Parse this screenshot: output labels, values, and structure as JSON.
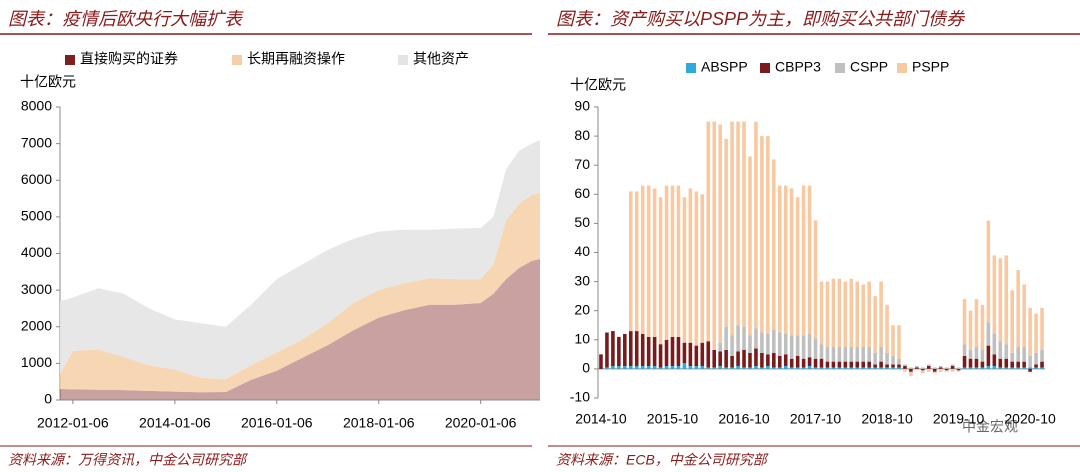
{
  "chart_data": [
    {
      "type": "area",
      "title": "图表：疫情后欧央行大幅扩表",
      "ylabel": "十亿欧元",
      "source": "资料来源：万得资讯，中金公司研究部",
      "x": [
        "2011-10-06",
        "2012-01-06",
        "2012-07-06",
        "2013-01-06",
        "2013-07-06",
        "2014-01-06",
        "2014-07-06",
        "2015-01-06",
        "2015-07-06",
        "2016-01-06",
        "2016-07-06",
        "2017-01-06",
        "2017-07-06",
        "2018-01-06",
        "2018-07-06",
        "2019-01-06",
        "2019-07-06",
        "2020-01-06",
        "2020-04-06",
        "2020-07-06",
        "2020-10-06",
        "2021-01-06",
        "2021-03-06"
      ],
      "series": [
        {
          "name": "直接购买的证券",
          "color": "#7f1f1f",
          "values": [
            300,
            290,
            280,
            270,
            250,
            230,
            210,
            220,
            550,
            800,
            1150,
            1500,
            1900,
            2250,
            2450,
            2600,
            2600,
            2650,
            2900,
            3300,
            3600,
            3800,
            3850
          ]
        },
        {
          "name": "长期再融资操作",
          "color": "#f6cfa6",
          "values": [
            400,
            1050,
            1100,
            900,
            700,
            600,
            400,
            350,
            400,
            500,
            500,
            600,
            750,
            750,
            740,
            720,
            700,
            650,
            800,
            1600,
            1750,
            1800,
            1800
          ]
        },
        {
          "name": "其他资产",
          "color": "#e4e4e4",
          "values": [
            2000,
            1460,
            1670,
            1730,
            1550,
            1370,
            1490,
            1430,
            1650,
            2000,
            2050,
            2000,
            1750,
            1600,
            1460,
            1330,
            1380,
            1400,
            1300,
            1400,
            1450,
            1400,
            1450
          ]
        }
      ],
      "xlim": [
        "2011-10-06",
        "2021-03-06"
      ],
      "xticks": [
        "2012-01-06",
        "2014-01-06",
        "2016-01-06",
        "2018-01-06",
        "2020-01-06"
      ],
      "ylim": [
        0,
        8000
      ],
      "yticks": [
        0,
        1000,
        2000,
        3000,
        4000,
        5000,
        6000,
        7000,
        8000
      ]
    },
    {
      "type": "bar",
      "title": "图表：资产购买以PSPP为主，即购买公共部门债券",
      "ylabel": "十亿欧元",
      "source": "资料来源：ECB，中金公司研究部",
      "watermark": "中金宏观",
      "categories": [
        "2014-10",
        null,
        null,
        null,
        null,
        null,
        null,
        null,
        null,
        null,
        null,
        null,
        "2015-10",
        null,
        null,
        null,
        null,
        null,
        null,
        null,
        null,
        null,
        null,
        null,
        "2016-10",
        null,
        null,
        null,
        null,
        null,
        null,
        null,
        null,
        null,
        null,
        null,
        "2017-10",
        null,
        null,
        null,
        null,
        null,
        null,
        null,
        null,
        null,
        null,
        null,
        "2018-10",
        null,
        null,
        null,
        null,
        null,
        null,
        null,
        null,
        null,
        null,
        null,
        "2019-10",
        null,
        null,
        null,
        null,
        null,
        null,
        null,
        null,
        null,
        null,
        null,
        "2020-10",
        null,
        null
      ],
      "series": [
        {
          "name": "ABSPP",
          "color": "#2eaadc",
          "values": [
            0,
            0.5,
            1,
            1,
            1,
            1,
            1,
            1,
            1,
            1,
            0.5,
            1,
            1,
            1,
            2,
            1,
            1,
            1,
            0.5,
            0.5,
            1,
            0.5,
            0.5,
            1,
            0.5,
            0.5,
            1,
            0.5,
            1,
            0.5,
            0.5,
            1,
            0.5,
            0.5,
            0.5,
            1,
            0.5,
            0.5,
            0.5,
            0.5,
            0.5,
            0.5,
            0.5,
            0.5,
            0.5,
            0.5,
            0.5,
            0.5,
            0.5,
            0.5,
            0.5,
            0,
            0,
            0,
            0,
            0,
            0,
            0,
            0,
            0,
            0,
            0.5,
            0.5,
            0.5,
            0.5,
            1,
            1,
            0.5,
            0.5,
            0.5,
            0.5,
            0.5,
            0.5,
            0.5,
            0.5
          ]
        },
        {
          "name": "CBPP3",
          "color": "#7b1a1a",
          "values": [
            5,
            12,
            12,
            10,
            11,
            12,
            12,
            11,
            10,
            10,
            8,
            9,
            10,
            10,
            7,
            8,
            7,
            8,
            9,
            6,
            5,
            6,
            4,
            5,
            6,
            5,
            6,
            5,
            4,
            5,
            4,
            4,
            3,
            4,
            3,
            3,
            3,
            3,
            2,
            2,
            2,
            2,
            2,
            2,
            2,
            2,
            1,
            2,
            1,
            1,
            1,
            1,
            -1,
            0.5,
            -0.5,
            1,
            -1,
            0.5,
            -0.5,
            1,
            -0.5,
            4,
            3,
            3,
            2,
            7,
            4,
            3,
            3,
            2,
            2,
            2,
            -1,
            1,
            2
          ]
        },
        {
          "name": "CSPP",
          "color": "#bfbfbf",
          "values": [
            0,
            0,
            0,
            0,
            0,
            0,
            0,
            0,
            0,
            0,
            0,
            0,
            0,
            0,
            0,
            0,
            0,
            0,
            0,
            0,
            3,
            8,
            7,
            9,
            8,
            6,
            7,
            7,
            7,
            8,
            8,
            7,
            8,
            7,
            8,
            8,
            7,
            5,
            5,
            5,
            5,
            5,
            5,
            5,
            5,
            5,
            4,
            5,
            4,
            3,
            2,
            0.5,
            0.5,
            0.5,
            0.5,
            0.5,
            0.5,
            0.5,
            0.5,
            0.5,
            0.5,
            4,
            3,
            4,
            4,
            8,
            7,
            6,
            5,
            3,
            5,
            5,
            4,
            4,
            4
          ]
        },
        {
          "name": "PSPP",
          "color": "#f8c9a0",
          "values": [
            0,
            0,
            0,
            0,
            0,
            48,
            48,
            51,
            52,
            51,
            50.5,
            53,
            52,
            52,
            50,
            53,
            53,
            51,
            75.5,
            78.5,
            75,
            64.5,
            73.5,
            70,
            70.5,
            61.5,
            71,
            67.5,
            68,
            58.5,
            50.5,
            51,
            50.5,
            47.5,
            51.5,
            51,
            40.5,
            21.5,
            22.5,
            23.5,
            23.5,
            22.5,
            23.5,
            22.5,
            21.5,
            22.5,
            19.5,
            22.5,
            16.5,
            10.5,
            11.5,
            -1,
            -1.5,
            -0.5,
            -1,
            -1,
            -0.5,
            -1,
            -0.5,
            -1,
            -0.5,
            15.5,
            13.5,
            16.5,
            15.5,
            35,
            27,
            28.5,
            30.5,
            21.5,
            26.5,
            21.5,
            16.5,
            13.5,
            14.5
          ]
        }
      ],
      "ylim": [
        -10,
        90
      ],
      "yticks": [
        -10,
        0,
        10,
        20,
        30,
        40,
        50,
        60,
        70,
        80,
        90
      ]
    }
  ]
}
